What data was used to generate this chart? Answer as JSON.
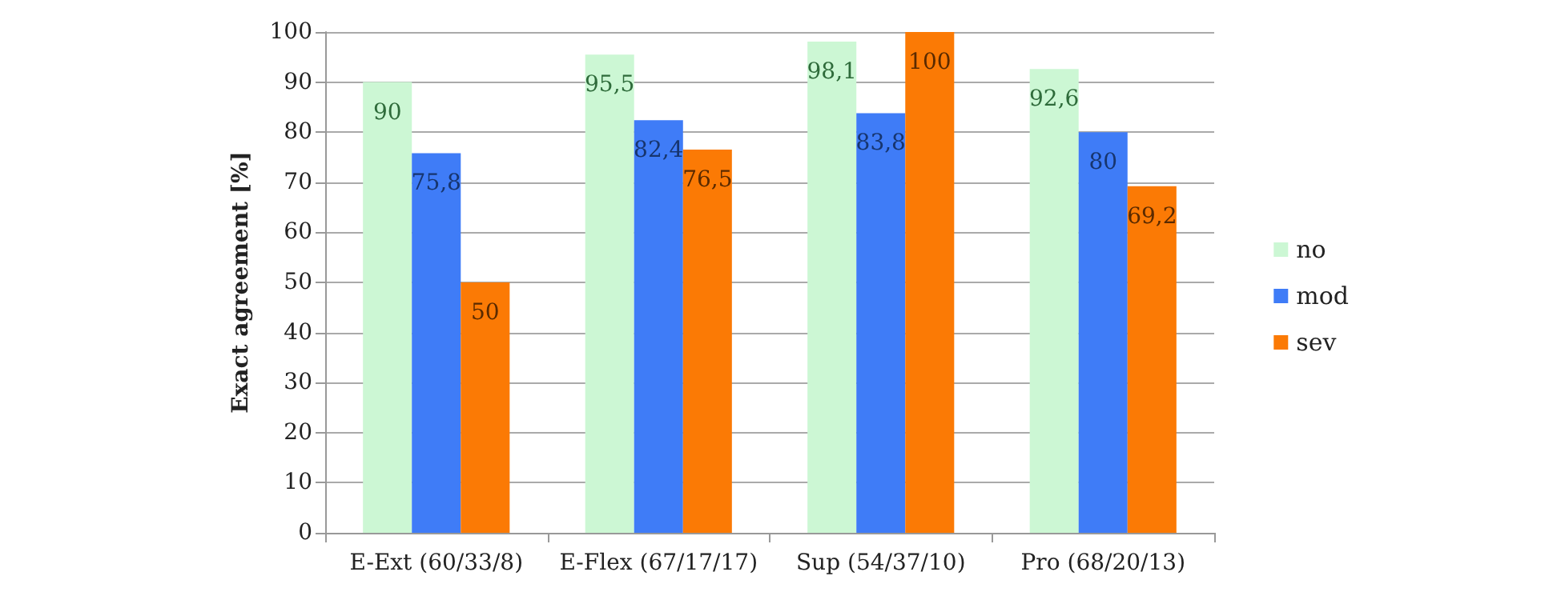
{
  "chart_data": {
    "type": "bar",
    "ylabel": "Exact agreement [%]",
    "categories": [
      "E-Ext (60/33/8)",
      "E-Flex (67/17/17)",
      "Sup (54/37/10)",
      "Pro (68/20/13)"
    ],
    "series": [
      {
        "name": "no",
        "color": "#ccf7d4",
        "values": [
          90,
          95.5,
          98.1,
          92.6
        ],
        "value_labels": [
          "90",
          "95,5",
          "98,1",
          "92,6"
        ]
      },
      {
        "name": "mod",
        "color": "#3f7cf7",
        "values": [
          75.8,
          82.4,
          83.8,
          80
        ],
        "value_labels": [
          "75,8",
          "82,4",
          "83,8",
          "80"
        ]
      },
      {
        "name": "sev",
        "color": "#fb7a05",
        "values": [
          50,
          76.5,
          100,
          69.2
        ],
        "value_labels": [
          "50",
          "76,5",
          "100",
          "69,2"
        ]
      }
    ],
    "ylim": [
      0,
      100
    ],
    "yticks": [
      0,
      10,
      20,
      30,
      40,
      50,
      60,
      70,
      80,
      90,
      100
    ],
    "grid": "y",
    "legend": "right"
  }
}
